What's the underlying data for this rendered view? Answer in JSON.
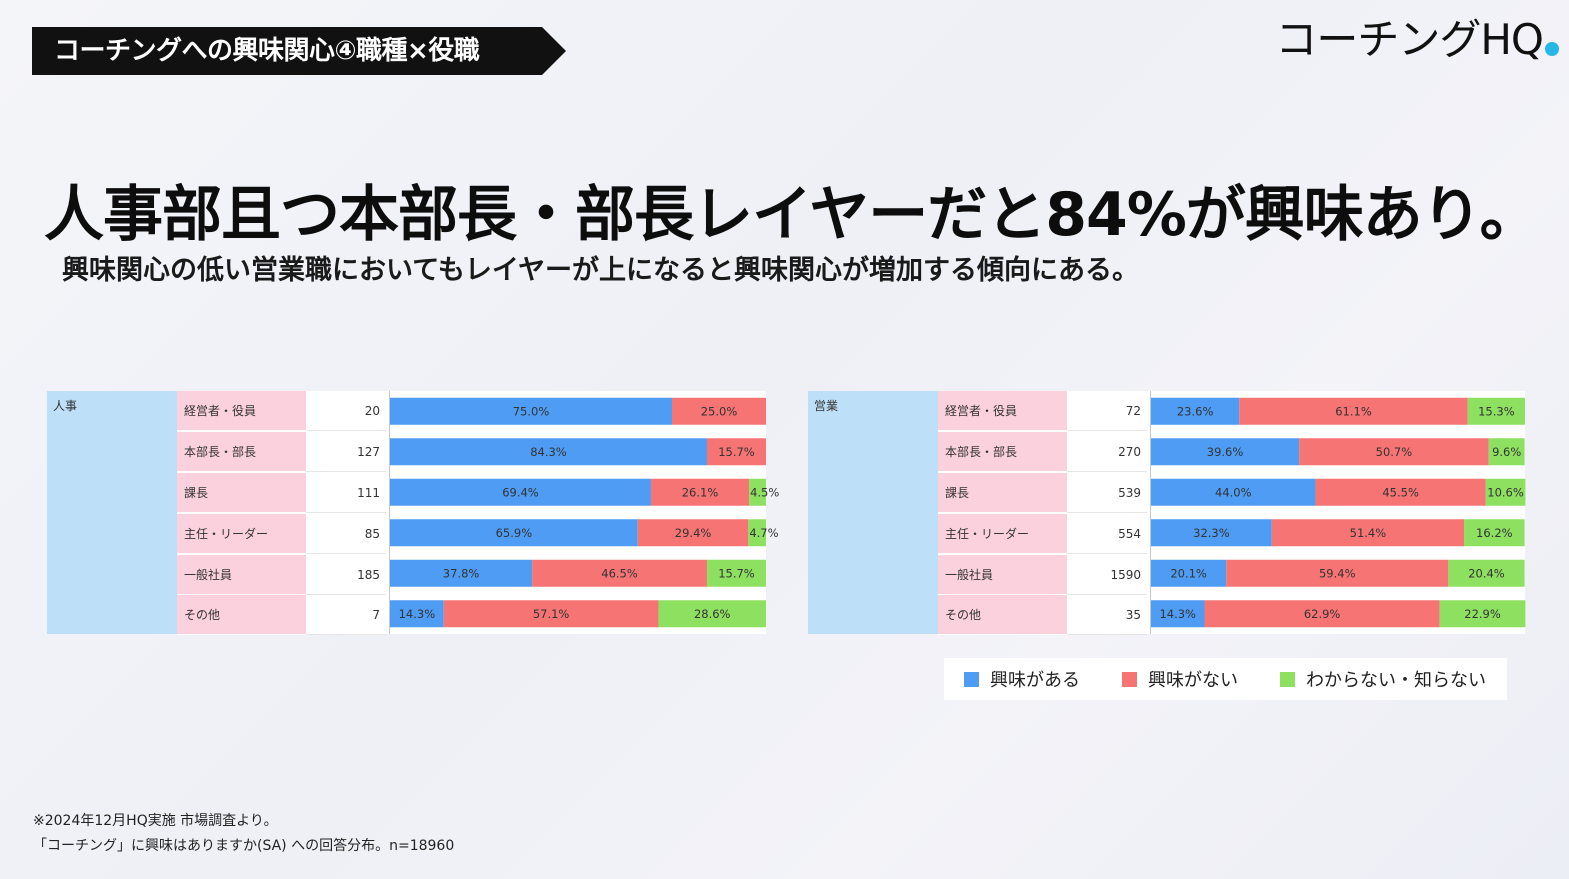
{
  "header": {
    "tag_title": "コーチングへの興味関心④職種×役職",
    "logo_text": "コーチングHQ"
  },
  "headline": "人事部且つ本部長・部長レイヤーだと84%が興味あり。",
  "subheadline": "興味関心の低い営業職においてもレイヤーが上になると興味関心が増加する傾向にある。",
  "colors": {
    "interested": "#4e9cf3",
    "not_interested": "#f77474",
    "unknown": "#8ee061"
  },
  "legend": [
    {
      "label": "興味がある",
      "color": "#4e9cf3"
    },
    {
      "label": "興味がない",
      "color": "#f77474"
    },
    {
      "label": "わからない・知らない",
      "color": "#8ee061"
    }
  ],
  "footnotes": [
    "※2024年12月HQ実施 市場調査より。",
    "「コーチング」に興味はありますか(SA) への回答分布。n=18960"
  ],
  "chart_data": [
    {
      "type": "bar",
      "stacked": "100%",
      "group": "人事",
      "categories": [
        "経営者・役員",
        "本部長・部長",
        "課長",
        "主任・リーダー",
        "一般社員",
        "その他"
      ],
      "counts": [
        20,
        127,
        111,
        85,
        185,
        7
      ],
      "series": [
        {
          "name": "興味がある",
          "values": [
            75.0,
            84.3,
            69.4,
            65.9,
            37.8,
            14.3
          ],
          "labels": [
            "75.0%",
            "84.3%",
            "69.4%",
            "65.9%",
            "37.8%",
            "14.3%"
          ]
        },
        {
          "name": "興味がない",
          "values": [
            25.0,
            15.7,
            26.1,
            29.4,
            46.5,
            57.1
          ],
          "labels": [
            "25.0%",
            "15.7%",
            "26.1%",
            "29.4%",
            "46.5%",
            "57.1%"
          ]
        },
        {
          "name": "わからない・知らない",
          "values": [
            0,
            0,
            4.5,
            4.7,
            15.7,
            28.6
          ],
          "labels": [
            "",
            "",
            "4.5%",
            "4.7%",
            "15.7%",
            "28.6%"
          ]
        }
      ]
    },
    {
      "type": "bar",
      "stacked": "100%",
      "group": "営業",
      "categories": [
        "経営者・役員",
        "本部長・部長",
        "課長",
        "主任・リーダー",
        "一般社員",
        "その他"
      ],
      "counts": [
        72,
        270,
        539,
        554,
        1590,
        35
      ],
      "series": [
        {
          "name": "興味がある",
          "values": [
            23.6,
            39.6,
            44.0,
            32.3,
            20.1,
            14.3
          ],
          "labels": [
            "23.6%",
            "39.6%",
            "44.0%",
            "32.3%",
            "20.1%",
            "14.3%"
          ]
        },
        {
          "name": "興味がない",
          "values": [
            61.1,
            50.7,
            45.5,
            51.4,
            59.4,
            62.9
          ],
          "labels": [
            "61.1%",
            "50.7%",
            "45.5%",
            "51.4%",
            "59.4%",
            "62.9%"
          ]
        },
        {
          "name": "わからない・知らない",
          "values": [
            15.3,
            9.6,
            10.6,
            16.2,
            20.4,
            22.9
          ],
          "labels": [
            "15.3%",
            "9.6%",
            "10.6%",
            "16.2%",
            "20.4%",
            "22.9%"
          ]
        }
      ]
    }
  ]
}
